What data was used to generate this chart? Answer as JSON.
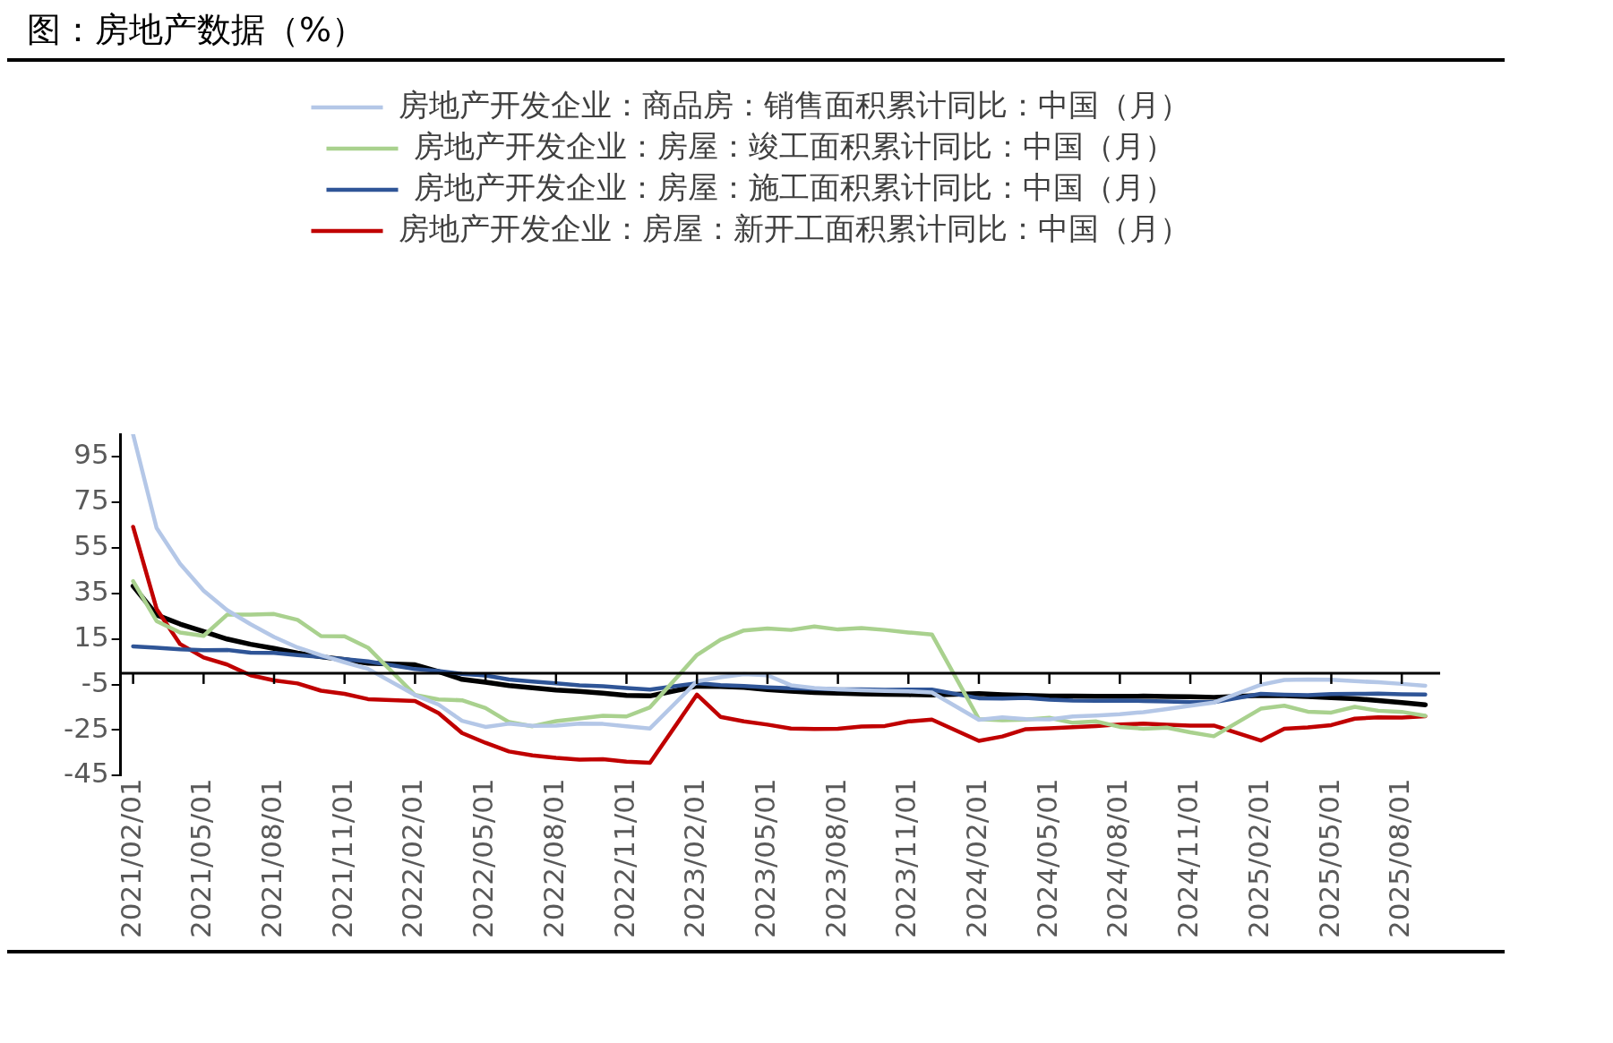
{
  "chart_data": {
    "type": "line",
    "title": "图：房地产数据（%）",
    "x": [
      "2021-02",
      "2021-03",
      "2021-04",
      "2021-05",
      "2021-06",
      "2021-07",
      "2021-08",
      "2021-09",
      "2021-10",
      "2021-11",
      "2021-12",
      "2022-02",
      "2022-03",
      "2022-04",
      "2022-05",
      "2022-06",
      "2022-07",
      "2022-08",
      "2022-09",
      "2022-10",
      "2022-11",
      "2022-12",
      "2023-02",
      "2023-03",
      "2023-04",
      "2023-05",
      "2023-06",
      "2023-07",
      "2023-08",
      "2023-09",
      "2023-10",
      "2023-11",
      "2023-12",
      "2024-02",
      "2024-03",
      "2024-04",
      "2024-05",
      "2024-06",
      "2024-07",
      "2024-08",
      "2024-09",
      "2024-10",
      "2024-11",
      "2024-12",
      "2025-02",
      "2025-03",
      "2025-04",
      "2025-05",
      "2025-06",
      "2025-07",
      "2025-08",
      "2025-09"
    ],
    "series": [
      {
        "name": "房地产开发企业：商品房：销售面积累计同比：中国（月）",
        "color": "#b4c7e7",
        "values": [
          104.9,
          63.8,
          48.1,
          36.3,
          27.7,
          21.5,
          15.9,
          11.3,
          7.9,
          4.8,
          1.9,
          -9.6,
          -13.8,
          -20.9,
          -23.6,
          -22.2,
          -23.1,
          -23.0,
          -22.2,
          -22.3,
          -23.3,
          -24.3,
          -3.6,
          -1.8,
          -0.4,
          -0.9,
          -5.3,
          -6.5,
          -7.1,
          -7.5,
          -7.8,
          -8.0,
          -8.5,
          -20.5,
          -19.4,
          -20.2,
          -20.3,
          -19.0,
          -18.6,
          -18.0,
          -17.1,
          -15.8,
          -14.3,
          -12.9,
          -5.1,
          -3.0,
          -2.8,
          -2.9,
          -3.5,
          -4.0,
          -4.7,
          -5.5
        ]
      },
      {
        "name": "房地产开发企业：房屋：竣工面积累计同比：中国（月）",
        "color": "#a9d18e",
        "values": [
          40.4,
          22.9,
          17.9,
          16.4,
          25.7,
          25.7,
          26.0,
          23.4,
          16.3,
          16.2,
          11.2,
          -9.6,
          -11.5,
          -11.9,
          -15.3,
          -21.5,
          -23.3,
          -21.1,
          -19.9,
          -18.7,
          -19.0,
          -15.0,
          8.0,
          14.7,
          18.8,
          19.6,
          19.0,
          20.5,
          19.2,
          19.8,
          19.0,
          17.9,
          17.0,
          -20.2,
          -20.7,
          -20.4,
          -19.6,
          -21.8,
          -21.2,
          -23.6,
          -24.4,
          -23.9,
          -26.0,
          -27.7,
          -15.6,
          -14.3,
          -16.9,
          -17.3,
          -14.8,
          -16.5,
          -17.0,
          -18.7
        ]
      },
      {
        "name": "房地产开发企业：房屋：施工面积累计同比：中国（月）",
        "color": "#2f5597",
        "values": [
          11.8,
          11.2,
          10.5,
          10.1,
          10.2,
          9.0,
          8.9,
          7.9,
          7.1,
          6.2,
          5.2,
          1.8,
          1.0,
          -0.3,
          -1.0,
          -2.8,
          -3.7,
          -4.5,
          -5.3,
          -5.7,
          -6.5,
          -7.2,
          -4.4,
          -5.2,
          -5.6,
          -6.2,
          -6.6,
          -6.8,
          -7.1,
          -7.1,
          -7.3,
          -7.2,
          -7.2,
          -11.0,
          -11.1,
          -10.8,
          -11.6,
          -12.0,
          -12.1,
          -12.0,
          -12.2,
          -12.4,
          -12.7,
          -12.7,
          -9.1,
          -9.5,
          -9.7,
          -9.2,
          -9.1,
          -9.0,
          -9.3,
          -9.4
        ]
      },
      {
        "name": "房地产开发企业：房屋：新开工面积累计同比：中国（月）",
        "color": "#c00000",
        "values": [
          64.3,
          28.2,
          12.8,
          6.9,
          3.8,
          -0.9,
          -3.2,
          -4.5,
          -7.7,
          -9.1,
          -11.4,
          -12.2,
          -17.5,
          -26.3,
          -30.6,
          -34.4,
          -36.1,
          -37.2,
          -38.0,
          -37.8,
          -38.9,
          -39.4,
          -9.4,
          -19.2,
          -21.2,
          -22.6,
          -24.3,
          -24.5,
          -24.4,
          -23.4,
          -23.2,
          -21.2,
          -20.4,
          -29.7,
          -27.8,
          -24.6,
          -24.2,
          -23.7,
          -23.2,
          -22.5,
          -22.2,
          -22.6,
          -23.0,
          -23.0,
          -29.6,
          -24.4,
          -23.8,
          -22.8,
          -20.0,
          -19.4,
          -19.5,
          -18.9
        ]
      },
      {
        "color": "#000000",
        "values": [
          38.3,
          25.6,
          21.6,
          18.3,
          15.0,
          12.7,
          10.9,
          8.8,
          7.2,
          6.0,
          4.4,
          3.7,
          0.7,
          -2.7,
          -4.0,
          -5.4,
          -6.4,
          -7.4,
          -8.0,
          -8.8,
          -9.8,
          -10.0,
          -5.7,
          -5.8,
          -6.2,
          -7.2,
          -7.9,
          -8.5,
          -8.8,
          -9.1,
          -9.3,
          -9.4,
          -9.6,
          -9.0,
          -9.5,
          -9.8,
          -10.1,
          -10.1,
          -10.2,
          -10.2,
          -10.1,
          -10.3,
          -10.4,
          -10.6,
          -9.8,
          -9.9,
          -10.3,
          -10.7,
          -11.2,
          -12.0,
          -12.9,
          -13.9
        ]
      }
    ],
    "ylim": [
      -45,
      105
    ],
    "yticks": [
      -45,
      -25,
      -5,
      15,
      35,
      55,
      75,
      95
    ],
    "xlim": [
      "2021-01-15",
      "2025-09-20"
    ],
    "xticks": [
      {
        "value": "2021-02-01",
        "label": "2021/02/01"
      },
      {
        "value": "2021-05-01",
        "label": "2021/05/01"
      },
      {
        "value": "2021-08-01",
        "label": "2021/08/01"
      },
      {
        "value": "2021-11-01",
        "label": "2021/11/01"
      },
      {
        "value": "2022-02-01",
        "label": "2022/02/01"
      },
      {
        "value": "2022-05-01",
        "label": "2022/05/01"
      },
      {
        "value": "2022-08-01",
        "label": "2022/08/01"
      },
      {
        "value": "2022-11-01",
        "label": "2022/11/01"
      },
      {
        "value": "2023-02-01",
        "label": "2023/02/01"
      },
      {
        "value": "2023-05-01",
        "label": "2023/05/01"
      },
      {
        "value": "2023-08-01",
        "label": "2023/08/01"
      },
      {
        "value": "2023-11-01",
        "label": "2023/11/01"
      },
      {
        "value": "2024-02-01",
        "label": "2024/02/01"
      },
      {
        "value": "2024-05-01",
        "label": "2024/05/01"
      },
      {
        "value": "2024-08-01",
        "label": "2024/08/01"
      },
      {
        "value": "2024-11-01",
        "label": "2024/11/01"
      },
      {
        "value": "2025-02-01",
        "label": "2025/02/01"
      },
      {
        "value": "2025-05-01",
        "label": "2025/05/01"
      },
      {
        "value": "2025-08-01",
        "label": "2025/08/01"
      }
    ],
    "grid": false,
    "legend": "top",
    "marker": "none",
    "line_style": "solid"
  }
}
